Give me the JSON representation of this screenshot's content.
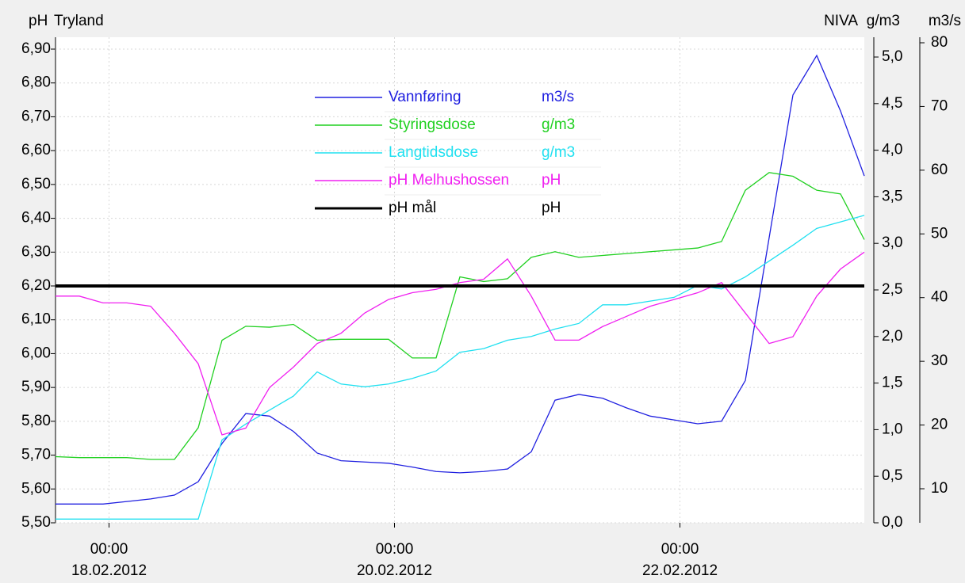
{
  "chart_data": {
    "type": "line",
    "title": "Tryland",
    "y_label": "pH",
    "source_label": "NIVA",
    "y2_label": "g/m3",
    "y3_label": "m3/s",
    "xlim": [
      "17.02.2012 15:00",
      "23.02.2012 07:00"
    ],
    "xticks": [
      {
        "value": "18.02.2012 00:00",
        "label": [
          "00:00",
          "18.02.2012"
        ]
      },
      {
        "value": "20.02.2012 00:00",
        "label": [
          "00:00",
          "20.02.2012"
        ]
      },
      {
        "value": "22.02.2012 00:00",
        "label": [
          "00:00",
          "22.02.2012"
        ]
      }
    ],
    "ylim": [
      5.5,
      6.9
    ],
    "yticks": [
      {
        "value": 5.5,
        "label": "5,50"
      },
      {
        "value": 5.6,
        "label": "5,60"
      },
      {
        "value": 5.7,
        "label": "5,70"
      },
      {
        "value": 5.8,
        "label": "5,80"
      },
      {
        "value": 5.9,
        "label": "5,90"
      },
      {
        "value": 6.0,
        "label": "6,00"
      },
      {
        "value": 6.1,
        "label": "6,10"
      },
      {
        "value": 6.2,
        "label": "6,20"
      },
      {
        "value": 6.3,
        "label": "6,30"
      },
      {
        "value": 6.4,
        "label": "6,40"
      },
      {
        "value": 6.5,
        "label": "6,50"
      },
      {
        "value": 6.6,
        "label": "6,60"
      },
      {
        "value": 6.7,
        "label": "6,70"
      },
      {
        "value": 6.8,
        "label": "6,80"
      },
      {
        "value": 6.9,
        "label": "6,90"
      }
    ],
    "y2lim": [
      0,
      5
    ],
    "y2ticks": [
      {
        "value": 0,
        "label": "0,0"
      },
      {
        "value": 0.5,
        "label": "0,5"
      },
      {
        "value": 1,
        "label": "1,0"
      },
      {
        "value": 1.5,
        "label": "1,5"
      },
      {
        "value": 2,
        "label": "2,0"
      },
      {
        "value": 2.5,
        "label": "2,5"
      },
      {
        "value": 3,
        "label": "3,0"
      },
      {
        "value": 3.5,
        "label": "3,5"
      },
      {
        "value": 4,
        "label": "4,0"
      },
      {
        "value": 4.5,
        "label": "4,5"
      },
      {
        "value": 5,
        "label": "5,0"
      }
    ],
    "y3lim": [
      10,
      80
    ],
    "y3ticks": [
      10,
      20,
      30,
      40,
      50,
      60,
      70,
      80
    ],
    "grid": true,
    "x": [
      "17.02.2012 15:00",
      "17.02.2012 19:00",
      "17.02.2012 23:00",
      "18.02.2012 03:00",
      "18.02.2012 07:00",
      "18.02.2012 11:00",
      "18.02.2012 15:00",
      "18.02.2012 19:00",
      "18.02.2012 23:00",
      "19.02.2012 03:00",
      "19.02.2012 07:00",
      "19.02.2012 11:00",
      "19.02.2012 15:00",
      "19.02.2012 19:00",
      "19.02.2012 23:00",
      "20.02.2012 03:00",
      "20.02.2012 07:00",
      "20.02.2012 11:00",
      "20.02.2012 15:00",
      "20.02.2012 19:00",
      "20.02.2012 23:00",
      "21.02.2012 03:00",
      "21.02.2012 07:00",
      "21.02.2012 11:00",
      "21.02.2012 15:00",
      "21.02.2012 19:00",
      "21.02.2012 23:00",
      "22.02.2012 03:00",
      "22.02.2012 07:00",
      "22.02.2012 11:00",
      "22.02.2012 15:00",
      "22.02.2012 19:00",
      "22.02.2012 23:00",
      "23.02.2012 03:00",
      "23.02.2012 07:00"
    ],
    "series": [
      {
        "name": "Vannføring",
        "unit": "m3/s",
        "color": "#2020e0",
        "axis": "y3",
        "values": [
          7.6,
          7.6,
          7.6,
          8.0,
          8.4,
          9.0,
          11.1,
          17.1,
          21.8,
          21.4,
          19,
          15.6,
          14.4,
          14.2,
          14,
          13.4,
          12.7,
          12.5,
          12.7,
          13.1,
          15.8,
          23.9,
          24.8,
          24.2,
          22.7,
          21.4,
          20.8,
          20.2,
          20.6,
          27,
          49.4,
          71.8,
          78,
          69.3,
          59.1
        ]
      },
      {
        "name": "Styringsdose",
        "unit": "g/m3",
        "color": "#20d020",
        "axis": "y2",
        "values": [
          0.71,
          0.7,
          0.7,
          0.7,
          0.68,
          0.68,
          1.02,
          1.96,
          2.11,
          2.1,
          2.13,
          1.96,
          1.97,
          1.97,
          1.97,
          1.77,
          1.77,
          2.64,
          2.59,
          2.62,
          2.85,
          2.91,
          2.85,
          2.87,
          2.89,
          2.91,
          2.93,
          2.95,
          3.02,
          3.57,
          3.76,
          3.72,
          3.57,
          3.53,
          3.04
        ]
      },
      {
        "name": "Langtidsdose",
        "unit": "g/m3",
        "color": "#20e0f0",
        "axis": "y2",
        "values": [
          0.04,
          0.04,
          0.04,
          0.04,
          0.04,
          0.04,
          0.04,
          0.89,
          1.06,
          1.21,
          1.36,
          1.62,
          1.49,
          1.46,
          1.49,
          1.55,
          1.63,
          1.83,
          1.87,
          1.96,
          2.0,
          2.08,
          2.14,
          2.34,
          2.34,
          2.38,
          2.42,
          2.55,
          2.51,
          2.64,
          2.81,
          2.98,
          3.16,
          3.23,
          3.3
        ]
      },
      {
        "name": "pH Melhushossen",
        "unit": "pH",
        "color": "#f020f0",
        "axis": "y",
        "values": [
          6.17,
          6.17,
          6.15,
          6.15,
          6.14,
          6.06,
          5.97,
          5.76,
          5.78,
          5.9,
          5.96,
          6.03,
          6.06,
          6.12,
          6.16,
          6.18,
          6.19,
          6.21,
          6.22,
          6.28,
          6.17,
          6.04,
          6.04,
          6.08,
          6.11,
          6.14,
          6.16,
          6.18,
          6.21,
          6.12,
          6.03,
          6.05,
          6.17,
          6.25,
          6.3
        ]
      },
      {
        "name": "pH mål",
        "unit": "pH",
        "color": "#000000",
        "axis": "y",
        "width": 4,
        "values": [
          6.2,
          6.2,
          6.2,
          6.2,
          6.2,
          6.2,
          6.2,
          6.2,
          6.2,
          6.2,
          6.2,
          6.2,
          6.2,
          6.2,
          6.2,
          6.2,
          6.2,
          6.2,
          6.2,
          6.2,
          6.2,
          6.2,
          6.2,
          6.2,
          6.2,
          6.2,
          6.2,
          6.2,
          6.2,
          6.2,
          6.2,
          6.2,
          6.2,
          6.2,
          6.2
        ]
      }
    ]
  }
}
